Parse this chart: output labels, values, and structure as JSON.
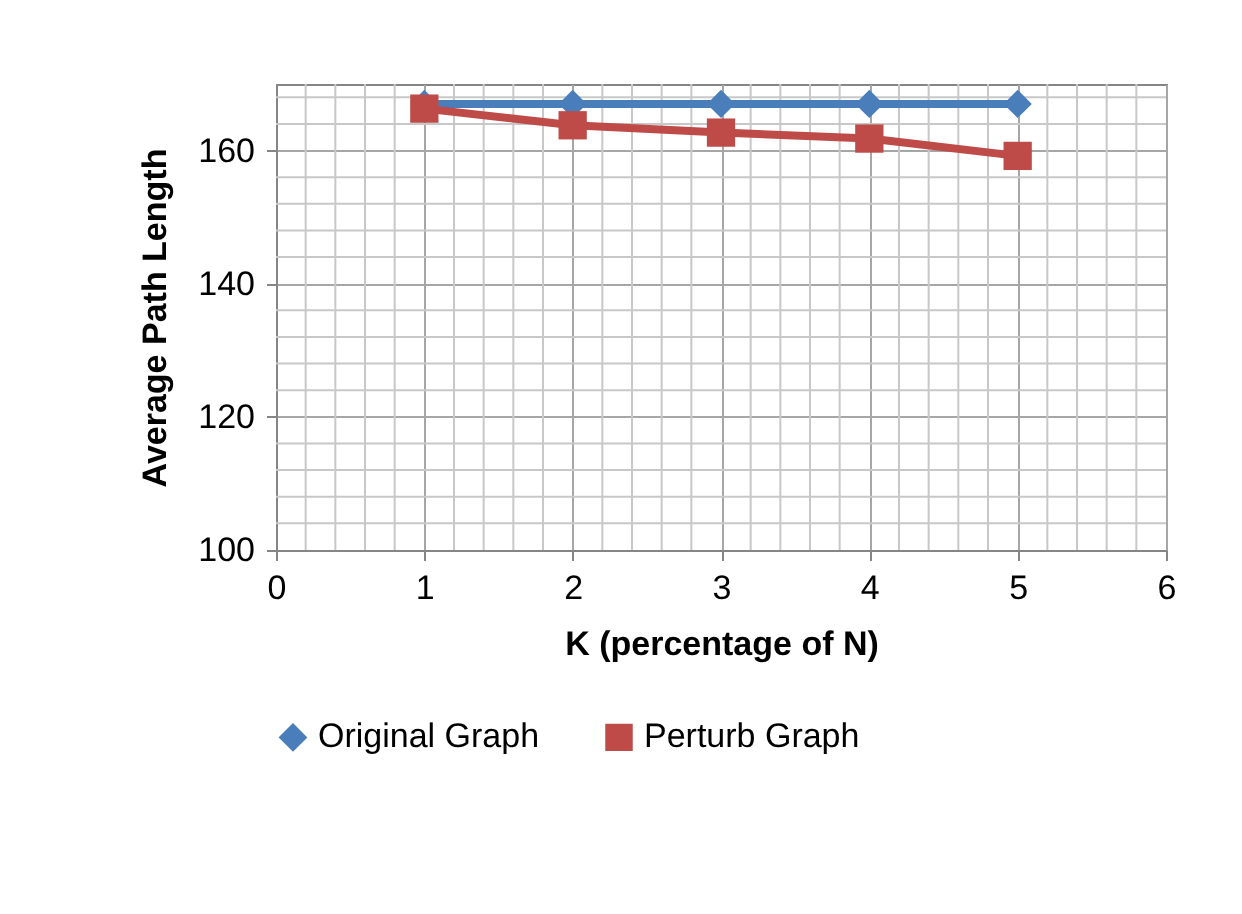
{
  "chart_data": {
    "type": "line",
    "xlabel": "K (percentage of N)",
    "ylabel": "Average Path Length",
    "x": [
      1,
      2,
      3,
      4,
      5
    ],
    "series": [
      {
        "name": "Original Graph",
        "color": "#4a7ebb",
        "marker": "diamond",
        "values": [
          167,
          167,
          167,
          167,
          167
        ]
      },
      {
        "name": "Perturb Graph",
        "color": "#be4b48",
        "marker": "square",
        "values": [
          166.3,
          163.8,
          162.7,
          161.8,
          159.2
        ]
      }
    ],
    "xlim": [
      0,
      6
    ],
    "xticks": [
      0,
      {
        "value": 0.2,
        "label": null
      },
      {
        "value": 0.4,
        "label": null
      },
      {
        "value": 0.6,
        "label": null
      },
      {
        "value": 0.8,
        "label": null
      },
      1,
      {
        "value": 1.2,
        "label": null
      },
      {
        "value": 1.4,
        "label": null
      },
      {
        "value": 1.6,
        "label": null
      },
      {
        "value": 1.8,
        "label": null
      },
      2,
      {
        "value": 2.2,
        "label": null
      },
      {
        "value": 2.4,
        "label": null
      },
      {
        "value": 2.6,
        "label": null
      },
      {
        "value": 2.8,
        "label": null
      },
      3,
      {
        "value": 3.2,
        "label": null
      },
      {
        "value": 3.4,
        "label": null
      },
      {
        "value": 3.6,
        "label": null
      },
      {
        "value": 3.8,
        "label": null
      },
      4,
      {
        "value": 4.2,
        "label": null
      },
      {
        "value": 4.4,
        "label": null
      },
      {
        "value": 4.6,
        "label": null
      },
      {
        "value": 4.8,
        "label": null
      },
      5,
      {
        "value": 5.2,
        "label": null
      },
      {
        "value": 5.4,
        "label": null
      },
      {
        "value": 5.6,
        "label": null
      },
      {
        "value": 5.8,
        "label": null
      },
      6
    ],
    "ylim": [
      100,
      170
    ],
    "yticks": [
      100,
      {
        "value": 104,
        "label": null
      },
      {
        "value": 108,
        "label": null
      },
      {
        "value": 112,
        "label": null
      },
      {
        "value": 116,
        "label": null
      },
      120,
      {
        "value": 124,
        "label": null
      },
      {
        "value": 128,
        "label": null
      },
      {
        "value": 132,
        "label": null
      },
      {
        "value": 136,
        "label": null
      },
      140,
      {
        "value": 144,
        "label": null
      },
      {
        "value": 148,
        "label": null
      },
      {
        "value": 152,
        "label": null
      },
      {
        "value": 156,
        "label": null
      },
      160,
      {
        "value": 164,
        "label": null
      },
      {
        "value": 168,
        "label": null
      }
    ],
    "grid": true,
    "legend": "bottom",
    "line_style": "solid"
  }
}
